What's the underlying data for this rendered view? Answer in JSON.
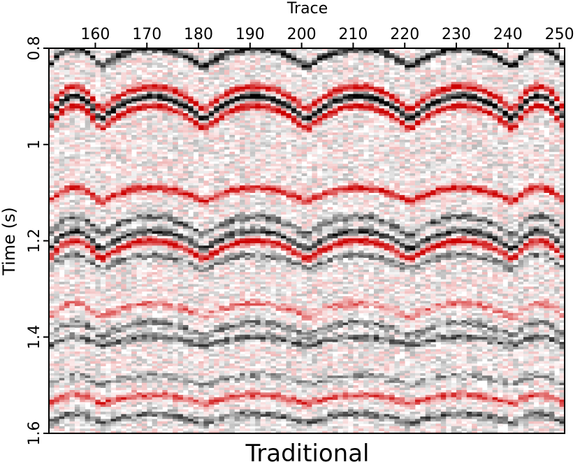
{
  "chart_data": {
    "type": "heatmap",
    "title": "Traditional",
    "xlabel": "Trace",
    "ylabel": "Time (s)",
    "x_axis_position": "top",
    "xlim": [
      151,
      251
    ],
    "ylim": [
      0.8,
      1.6
    ],
    "y_direction": "downward",
    "x_ticks": [
      160,
      170,
      180,
      190,
      200,
      210,
      220,
      230,
      240,
      250
    ],
    "y_ticks": [
      0.8,
      1,
      1.2,
      1.4,
      1.6
    ],
    "colormap": {
      "negative": "#000000",
      "zero": "#ffffff",
      "positive": "#cc0000"
    },
    "gather_boundaries": [
      161,
      181,
      201,
      221,
      241
    ],
    "events": [
      {
        "t0": 0.8,
        "curvature": 0.04,
        "amplitude": -0.9
      },
      {
        "t0": 0.88,
        "curvature": 0.05,
        "amplitude": 1.0
      },
      {
        "t0": 0.9,
        "curvature": 0.05,
        "amplitude": -1.0
      },
      {
        "t0": 0.92,
        "curvature": 0.05,
        "amplitude": 1.0
      },
      {
        "t0": 1.09,
        "curvature": 0.03,
        "amplitude": 0.9
      },
      {
        "t0": 1.15,
        "curvature": 0.04,
        "amplitude": -0.6
      },
      {
        "t0": 1.18,
        "curvature": 0.04,
        "amplitude": -0.8
      },
      {
        "t0": 1.2,
        "curvature": 0.04,
        "amplitude": 1.0
      },
      {
        "t0": 1.23,
        "curvature": 0.03,
        "amplitude": -0.5
      },
      {
        "t0": 1.33,
        "curvature": 0.03,
        "amplitude": 0.5
      },
      {
        "t0": 1.37,
        "curvature": 0.03,
        "amplitude": -0.5
      },
      {
        "t0": 1.4,
        "curvature": 0.02,
        "amplitude": -0.6
      },
      {
        "t0": 1.48,
        "curvature": 0.02,
        "amplitude": -0.4
      },
      {
        "t0": 1.52,
        "curvature": 0.02,
        "amplitude": 0.7
      },
      {
        "t0": 1.56,
        "curvature": 0.02,
        "amplitude": -0.6
      }
    ]
  }
}
